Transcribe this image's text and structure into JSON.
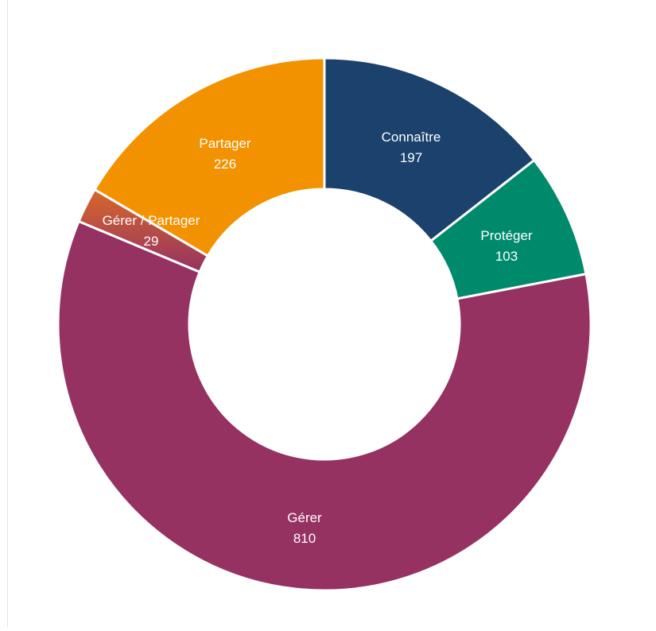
{
  "chart_data": {
    "type": "pie",
    "variant": "donut",
    "start_angle_deg": 0,
    "direction": "clockwise",
    "legend": "none",
    "slices": [
      {
        "label": "Connaître",
        "value": 197,
        "display_value": "197",
        "color": "#1b416d"
      },
      {
        "label": "Protéger",
        "value": 103,
        "display_value": "103",
        "color": "#008a6c"
      },
      {
        "label": "Gérer",
        "value": 810,
        "display_value": "810",
        "color": "#953262"
      },
      {
        "label": "Gérer / Partager",
        "value": 29,
        "display_value": "29",
        "color": "#cd5a2c",
        "gradient_to": "#953262"
      },
      {
        "label": "Partager",
        "value": 226,
        "display_value": "226",
        "color": "#f39200"
      }
    ]
  }
}
